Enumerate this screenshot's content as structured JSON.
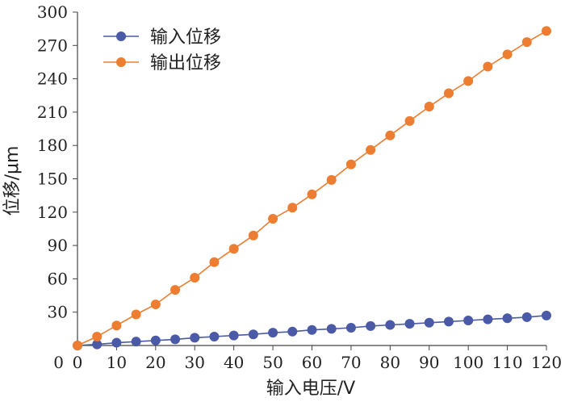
{
  "chart_data": {
    "type": "line",
    "title": "",
    "xlabel": "输入电压/V",
    "ylabel": "位移/μm",
    "xlim": [
      0,
      120
    ],
    "ylim": [
      0,
      300
    ],
    "x_ticks": [
      "0",
      "10",
      "20",
      "30",
      "40",
      "50",
      "60",
      "70",
      "80",
      "90",
      "100",
      "110",
      "120"
    ],
    "y_ticks": [
      "0",
      "30",
      "60",
      "90",
      "120",
      "150",
      "180",
      "210",
      "240",
      "270",
      "300"
    ],
    "grid": false,
    "legend_position": "top-left",
    "series": [
      {
        "name": "输入位移",
        "color": "#4a5aa6",
        "x": [
          0,
          5,
          10,
          15,
          20,
          25,
          30,
          35,
          40,
          45,
          50,
          55,
          60,
          65,
          70,
          75,
          80,
          85,
          90,
          95,
          100,
          105,
          110,
          115,
          120
        ],
        "y": [
          0,
          1,
          2.5,
          3.5,
          4.5,
          5.5,
          7,
          8,
          9,
          10,
          11.5,
          12.5,
          14,
          15,
          16,
          17.5,
          18.5,
          19.5,
          20.5,
          21.5,
          22.5,
          23.5,
          24.5,
          25.5,
          27
        ]
      },
      {
        "name": "输出位移",
        "color": "#ed7d31",
        "x": [
          0,
          5,
          10,
          15,
          20,
          25,
          30,
          35,
          40,
          45,
          50,
          55,
          60,
          65,
          70,
          75,
          80,
          85,
          90,
          95,
          100,
          105,
          110,
          115,
          120
        ],
        "y": [
          0,
          8,
          18,
          28,
          37,
          50,
          61,
          75,
          87,
          99,
          114,
          124,
          136,
          149,
          163,
          176,
          189,
          202,
          215,
          227,
          238,
          251,
          262,
          273,
          283
        ]
      }
    ]
  }
}
